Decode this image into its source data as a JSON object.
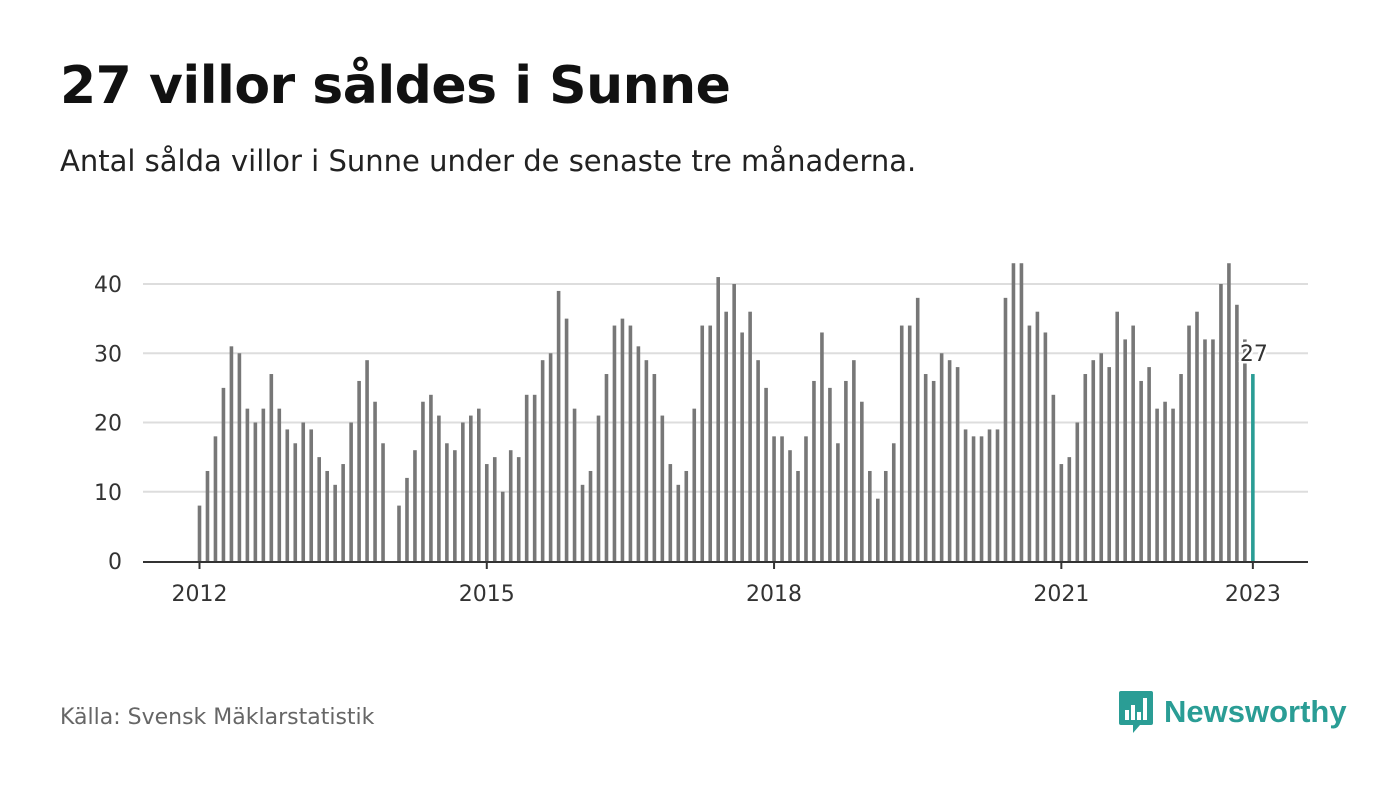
{
  "header": {
    "title": "27 villor såldes i Sunne",
    "subtitle": "Antal sålda villor i Sunne under de senaste tre månaderna."
  },
  "footer": {
    "source": "Källa: Svensk Mäklarstatistik",
    "brand": "Newsworthy",
    "brand_icon": "bar-chart-speech-bubble-icon"
  },
  "colors": {
    "bar": "#777777",
    "highlight": "#2a9d95",
    "grid": "#dddddd",
    "axis": "#333333"
  },
  "chart_data": {
    "type": "bar",
    "title": "27 villor såldes i Sunne",
    "subtitle": "Antal sålda villor i Sunne under de senaste tre månaderna.",
    "xlabel": "",
    "ylabel": "",
    "x_start": "2012-01",
    "x_end": "2023-01",
    "frequency": "monthly",
    "x_ticks": [
      "2012",
      "2015",
      "2018",
      "2021",
      "2023"
    ],
    "y_ticks": [
      0,
      10,
      20,
      30,
      40
    ],
    "ylim": [
      0,
      43
    ],
    "grid": true,
    "highlight_label": "27",
    "values": [
      8,
      13,
      18,
      25,
      31,
      30,
      22,
      20,
      22,
      27,
      22,
      19,
      17,
      20,
      19,
      15,
      13,
      11,
      14,
      20,
      26,
      29,
      23,
      17,
      0,
      8,
      12,
      16,
      23,
      24,
      21,
      17,
      16,
      20,
      21,
      22,
      14,
      15,
      10,
      16,
      15,
      24,
      24,
      29,
      30,
      39,
      35,
      22,
      11,
      13,
      21,
      27,
      34,
      35,
      34,
      31,
      29,
      27,
      21,
      14,
      11,
      13,
      22,
      34,
      34,
      41,
      36,
      40,
      33,
      36,
      29,
      25,
      18,
      18,
      16,
      13,
      18,
      26,
      33,
      25,
      17,
      26,
      29,
      23,
      13,
      9,
      13,
      17,
      34,
      34,
      38,
      27,
      26,
      30,
      29,
      28,
      19,
      18,
      18,
      19,
      19,
      38,
      43,
      43,
      34,
      36,
      33,
      24,
      14,
      15,
      20,
      27,
      29,
      30,
      28,
      36,
      32,
      34,
      26,
      28,
      22,
      23,
      22,
      27,
      34,
      36,
      32,
      32,
      40,
      43,
      37,
      32,
      27
    ]
  }
}
